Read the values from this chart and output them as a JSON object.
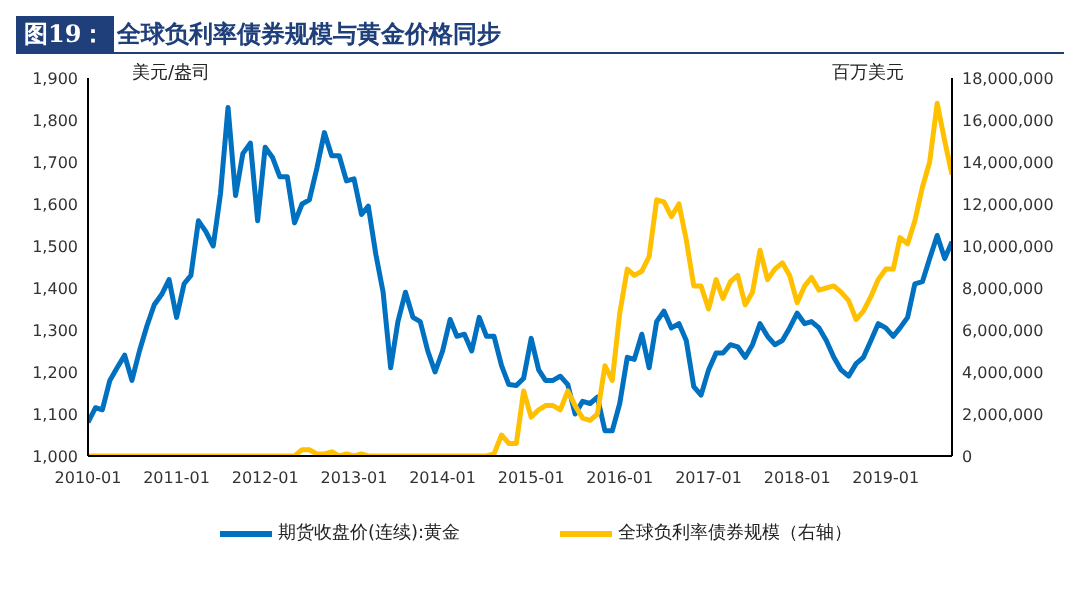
{
  "chart_data": {
    "type": "line",
    "title": "图19：全球负利率债券规模与黄金价格同步",
    "ylabel": "美元/盎司",
    "y2label": "百万美元",
    "x": [
      "2010-01",
      "2010-02",
      "2010-03",
      "2010-04",
      "2010-05",
      "2010-06",
      "2010-07",
      "2010-08",
      "2010-09",
      "2010-10",
      "2010-11",
      "2010-12",
      "2011-01",
      "2011-02",
      "2011-03",
      "2011-04",
      "2011-05",
      "2011-06",
      "2011-07",
      "2011-08",
      "2011-09",
      "2011-10",
      "2011-11",
      "2011-12",
      "2012-01",
      "2012-02",
      "2012-03",
      "2012-04",
      "2012-05",
      "2012-06",
      "2012-07",
      "2012-08",
      "2012-09",
      "2012-10",
      "2012-11",
      "2012-12",
      "2013-01",
      "2013-02",
      "2013-03",
      "2013-04",
      "2013-05",
      "2013-06",
      "2013-07",
      "2013-08",
      "2013-09",
      "2013-10",
      "2013-11",
      "2013-12",
      "2014-01",
      "2014-02",
      "2014-03",
      "2014-04",
      "2014-05",
      "2014-06",
      "2014-07",
      "2014-08",
      "2014-09",
      "2014-10",
      "2014-11",
      "2014-12",
      "2015-01",
      "2015-02",
      "2015-03",
      "2015-04",
      "2015-05",
      "2015-06",
      "2015-07",
      "2015-08",
      "2015-09",
      "2015-10",
      "2015-11",
      "2015-12",
      "2016-01",
      "2016-02",
      "2016-03",
      "2016-04",
      "2016-05",
      "2016-06",
      "2016-07",
      "2016-08",
      "2016-09",
      "2016-10",
      "2016-11",
      "2016-12",
      "2017-01",
      "2017-02",
      "2017-03",
      "2017-04",
      "2017-05",
      "2017-06",
      "2017-07",
      "2017-08",
      "2017-09",
      "2017-10",
      "2017-11",
      "2017-12",
      "2018-01",
      "2018-02",
      "2018-03",
      "2018-04",
      "2018-05",
      "2018-06",
      "2018-07",
      "2018-08",
      "2018-09",
      "2018-10",
      "2018-11",
      "2018-12",
      "2019-01",
      "2019-02",
      "2019-03",
      "2019-04",
      "2019-05",
      "2019-06",
      "2019-07",
      "2019-08",
      "2019-09",
      "2019-10"
    ],
    "series": [
      {
        "name": "期货收盘价(连续):黄金",
        "color": "#0070c0",
        "values": [
          1080,
          1115,
          1110,
          1180,
          1210,
          1240,
          1180,
          1250,
          1310,
          1360,
          1385,
          1420,
          1330,
          1410,
          1430,
          1560,
          1535,
          1500,
          1625,
          1830,
          1620,
          1720,
          1745,
          1560,
          1735,
          1710,
          1665,
          1665,
          1555,
          1600,
          1610,
          1685,
          1770,
          1715,
          1715,
          1655,
          1660,
          1575,
          1595,
          1480,
          1390,
          1210,
          1320,
          1390,
          1330,
          1320,
          1250,
          1200,
          1250,
          1325,
          1285,
          1290,
          1250,
          1330,
          1285,
          1285,
          1215,
          1170,
          1168,
          1185,
          1280,
          1205,
          1180,
          1180,
          1190,
          1170,
          1100,
          1130,
          1125,
          1140,
          1060,
          1060,
          1125,
          1235,
          1230,
          1290,
          1210,
          1320,
          1345,
          1305,
          1315,
          1275,
          1165,
          1145,
          1205,
          1245,
          1245,
          1265,
          1260,
          1235,
          1265,
          1315,
          1285,
          1265,
          1275,
          1305,
          1340,
          1315,
          1320,
          1305,
          1275,
          1235,
          1205,
          1190,
          1220,
          1235,
          1275,
          1315,
          1305,
          1285,
          1305,
          1330,
          1410,
          1415,
          1470,
          1525,
          1470,
          1510
        ]
      },
      {
        "name": "全球负利率债券规模（右轴）",
        "color": "#ffc000",
        "axis": "y2",
        "values": [
          0,
          0,
          0,
          0,
          0,
          0,
          0,
          0,
          0,
          0,
          0,
          0,
          0,
          0,
          0,
          0,
          0,
          0,
          0,
          0,
          0,
          0,
          0,
          0,
          0,
          0,
          0,
          0,
          0,
          300000,
          300000,
          100000,
          100000,
          200000,
          0,
          100000,
          0,
          100000,
          0,
          0,
          0,
          0,
          0,
          0,
          0,
          0,
          0,
          0,
          0,
          0,
          0,
          0,
          0,
          0,
          0,
          100000,
          1000000,
          600000,
          600000,
          3100000,
          1850000,
          2200000,
          2400000,
          2400000,
          2200000,
          3100000,
          2400000,
          1800000,
          1700000,
          2000000,
          4300000,
          3600000,
          6800000,
          8900000,
          8600000,
          8800000,
          9500000,
          12200000,
          12100000,
          11400000,
          12000000,
          10300000,
          8100000,
          8100000,
          7000000,
          8400000,
          7500000,
          8300000,
          8600000,
          7200000,
          7800000,
          9800000,
          8400000,
          8900000,
          9200000,
          8600000,
          7300000,
          8100000,
          8500000,
          7900000,
          8000000,
          8100000,
          7800000,
          7400000,
          6500000,
          6900000,
          7600000,
          8400000,
          8900000,
          8900000,
          10400000,
          10100000,
          11200000,
          12800000,
          14000000,
          16800000,
          15000000,
          13400000
        ]
      }
    ],
    "xlim": [
      "2010-01",
      "2019-10"
    ],
    "xticks": [
      "2010-01",
      "2011-01",
      "2012-01",
      "2013-01",
      "2014-01",
      "2015-01",
      "2016-01",
      "2017-01",
      "2018-01",
      "2019-01"
    ],
    "ylim": [
      1000,
      1900
    ],
    "yticks": [
      {
        "value": 1000,
        "label": "1,000"
      },
      {
        "value": 1100,
        "label": "1,100"
      },
      {
        "value": 1200,
        "label": "1,200"
      },
      {
        "value": 1300,
        "label": "1,300"
      },
      {
        "value": 1400,
        "label": "1,400"
      },
      {
        "value": 1500,
        "label": "1,500"
      },
      {
        "value": 1600,
        "label": "1,600"
      },
      {
        "value": 1700,
        "label": "1,700"
      },
      {
        "value": 1800,
        "label": "1,800"
      },
      {
        "value": 1900,
        "label": "1,900"
      }
    ],
    "y2lim": [
      0,
      18000000
    ],
    "y2ticks": [
      0,
      {
        "value": 2000000,
        "label": "2,000,000"
      },
      {
        "value": 4000000,
        "label": "4,000,000"
      },
      {
        "value": 6000000,
        "label": "6,000,000"
      },
      {
        "value": 8000000,
        "label": "8,000,000"
      },
      {
        "value": 10000000,
        "label": "10,000,000"
      },
      {
        "value": 12000000,
        "label": "12,000,000"
      },
      {
        "value": 14000000,
        "label": "14,000,000"
      },
      {
        "value": 16000000,
        "label": "16,000,000"
      },
      {
        "value": 18000000,
        "label": "18,000,000"
      }
    ],
    "legend": "bottom",
    "grid": false,
    "marker": "none",
    "line_style": "solid"
  }
}
